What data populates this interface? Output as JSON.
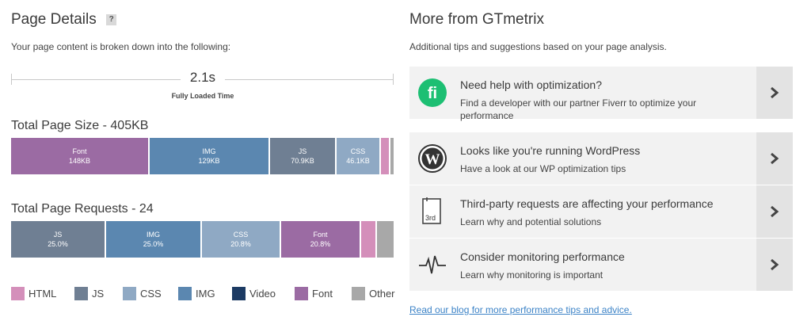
{
  "left": {
    "title": "Page Details",
    "help": "?",
    "subtitle": "Your page content is broken down into the following:",
    "fully_loaded": {
      "value": "2.1s",
      "label": "Fully Loaded Time"
    },
    "size_title": "Total Page Size - 405KB",
    "size_bars": [
      {
        "name": "Font",
        "value": "148KB",
        "color": "#9b6ba3"
      },
      {
        "name": "IMG",
        "value": "129KB",
        "color": "#5b87b0"
      },
      {
        "name": "JS",
        "value": "70.9KB",
        "color": "#6f7f93"
      },
      {
        "name": "CSS",
        "value": "46.1KB",
        "color": "#8fa9c4"
      }
    ],
    "requests_title": "Total Page Requests - 24",
    "request_bars": [
      {
        "name": "JS",
        "value": "25.0%",
        "color": "#6f7f93"
      },
      {
        "name": "IMG",
        "value": "25.0%",
        "color": "#5b87b0"
      },
      {
        "name": "CSS",
        "value": "20.8%",
        "color": "#8fa9c4"
      },
      {
        "name": "Font",
        "value": "20.8%",
        "color": "#9b6ba3"
      }
    ],
    "legend": [
      {
        "label": "HTML",
        "color": "#d48fba"
      },
      {
        "label": "JS",
        "color": "#6f7f93"
      },
      {
        "label": "CSS",
        "color": "#8fa9c4"
      },
      {
        "label": "IMG",
        "color": "#5b87b0"
      },
      {
        "label": "Video",
        "color": "#1c3a63"
      },
      {
        "label": "Font",
        "color": "#9b6ba3"
      },
      {
        "label": "Other",
        "color": "#a8a8a8"
      }
    ]
  },
  "right": {
    "title": "More from GTmetrix",
    "subtitle": "Additional tips and suggestions based on your page analysis.",
    "cards": [
      {
        "title": "Need help with optimization?",
        "desc": "Find a developer with our partner Fiverr to optimize your performance",
        "icon": "fiverr-icon"
      },
      {
        "title": "Looks like you're running WordPress",
        "desc": "Have a look at our WP optimization tips",
        "icon": "wordpress-icon"
      },
      {
        "title": "Third-party requests are affecting your performance",
        "desc": "Learn why and potential solutions",
        "icon": "third-party-icon",
        "icon_text": "3rd"
      },
      {
        "title": "Consider monitoring performance",
        "desc": "Learn why monitoring is important",
        "icon": "heartbeat-icon"
      }
    ],
    "blog_link": "Read our blog for more performance tips and advice."
  }
}
